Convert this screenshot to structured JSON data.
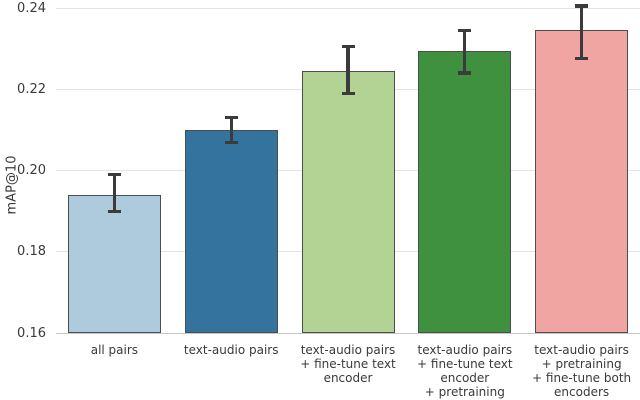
{
  "chart_data": {
    "type": "bar",
    "title": "",
    "xlabel": "",
    "ylabel": "mAP@10",
    "ylim": [
      0.16,
      0.242
    ],
    "grid": true,
    "legend": null,
    "yticks": [
      0.16,
      0.18,
      0.2,
      0.22,
      0.24
    ],
    "ytick_labels": [
      "0.16",
      "0.18",
      "0.20",
      "0.22",
      "0.24"
    ],
    "categories": [
      "all pairs",
      "text-audio pairs",
      "text-audio pairs\n+ fine-tune text\nencoder",
      "text-audio pairs\n+ fine-tune text\nencoder\n+ pretraining",
      "text-audio pairs\n+ pretraining\n+ fine-tune both\nencoders"
    ],
    "values": [
      0.194,
      0.21,
      0.2245,
      0.2295,
      0.2345
    ],
    "error_low": [
      0.19,
      0.207,
      0.219,
      0.224,
      0.2275
    ],
    "error_high": [
      0.199,
      0.213,
      0.2305,
      0.2345,
      0.2405
    ],
    "bar_colors": [
      "#aecbdd",
      "#33739e",
      "#b2d393",
      "#3f9140",
      "#f1a5a2"
    ],
    "bar_edge_color": "#4d4d4d",
    "error_bar_color": "#3b3b3b",
    "grid_color": "#e4e4e4",
    "axis_line_color": "#c6c6c6",
    "text_color": "#3a3a3a",
    "background_color": "#ffffff"
  }
}
